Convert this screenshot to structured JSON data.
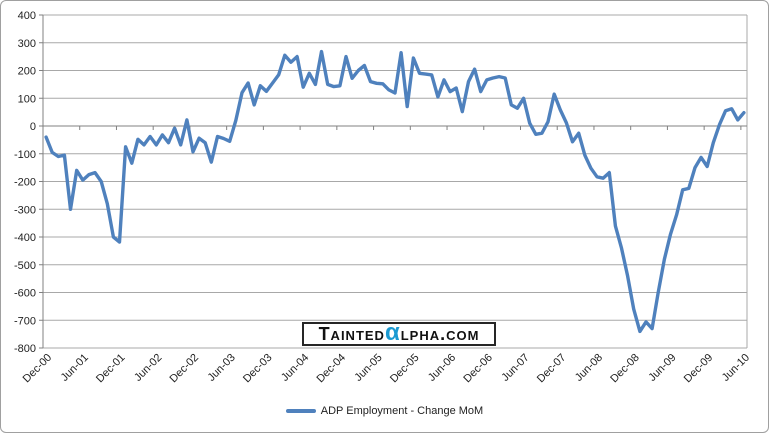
{
  "colors": {
    "line": "#4F81BD",
    "grid": "#A8A8A8",
    "axis": "#808080",
    "tick_label": "#1F1F1F",
    "legend_text": "#1F1F1F",
    "frame_border": "#A0A0A0",
    "background": "#FFFFFF",
    "watermark_border": "#262626",
    "watermark_text": "#111111",
    "watermark_alpha": "#1B9AD2"
  },
  "watermark": {
    "left": "Tainted",
    "alpha": "α",
    "right": "lpha.com"
  },
  "legend": {
    "label": "ADP Employment - Change MoM"
  },
  "chart_data": {
    "type": "line",
    "title": "",
    "xlabel": "",
    "ylabel": "",
    "x_range": "Dec-00 to Jun-10",
    "x_frequency": "monthly",
    "x_tick_step_months": 6,
    "x_tick_labels": [
      "Dec-00",
      "Jun-01",
      "Dec-01",
      "Jun-02",
      "Dec-02",
      "Jun-03",
      "Dec-03",
      "Jun-04",
      "Dec-04",
      "Jun-05",
      "Dec-05",
      "Jun-06",
      "Dec-06",
      "Jun-07",
      "Dec-07",
      "Jun-08",
      "Dec-08",
      "Jun-09",
      "Dec-09",
      "Jun-10"
    ],
    "ylim": [
      -800,
      400
    ],
    "y_ticks": [
      400,
      300,
      200,
      100,
      0,
      -100,
      -200,
      -300,
      -400,
      -500,
      -600,
      -700,
      -800
    ],
    "grid": true,
    "legend_position": "bottom",
    "series": [
      {
        "name": "ADP Employment - Change MoM",
        "color": "#4F81BD",
        "values": [
          -40,
          -95,
          -110,
          -105,
          -300,
          -160,
          -195,
          -175,
          -168,
          -200,
          -280,
          -400,
          -418,
          -75,
          -134,
          -48,
          -68,
          -38,
          -68,
          -32,
          -60,
          -8,
          -68,
          22,
          -93,
          -44,
          -60,
          -130,
          -38,
          -45,
          -55,
          20,
          120,
          155,
          76,
          145,
          125,
          155,
          185,
          255,
          230,
          250,
          140,
          190,
          150,
          268,
          150,
          142,
          145,
          250,
          172,
          200,
          218,
          160,
          154,
          152,
          130,
          119,
          264,
          70,
          245,
          190,
          187,
          184,
          105,
          166,
          124,
          137,
          52,
          160,
          205,
          124,
          166,
          173,
          178,
          173,
          76,
          64,
          100,
          10,
          -30,
          -26,
          15,
          115,
          58,
          11,
          -57,
          -26,
          -105,
          -152,
          -183,
          -188,
          -168,
          -360,
          -440,
          -540,
          -660,
          -740,
          -706,
          -730,
          -600,
          -480,
          -390,
          -320,
          -230,
          -225,
          -150,
          -113,
          -146,
          -60,
          5,
          55,
          62,
          22,
          48
        ]
      }
    ]
  }
}
